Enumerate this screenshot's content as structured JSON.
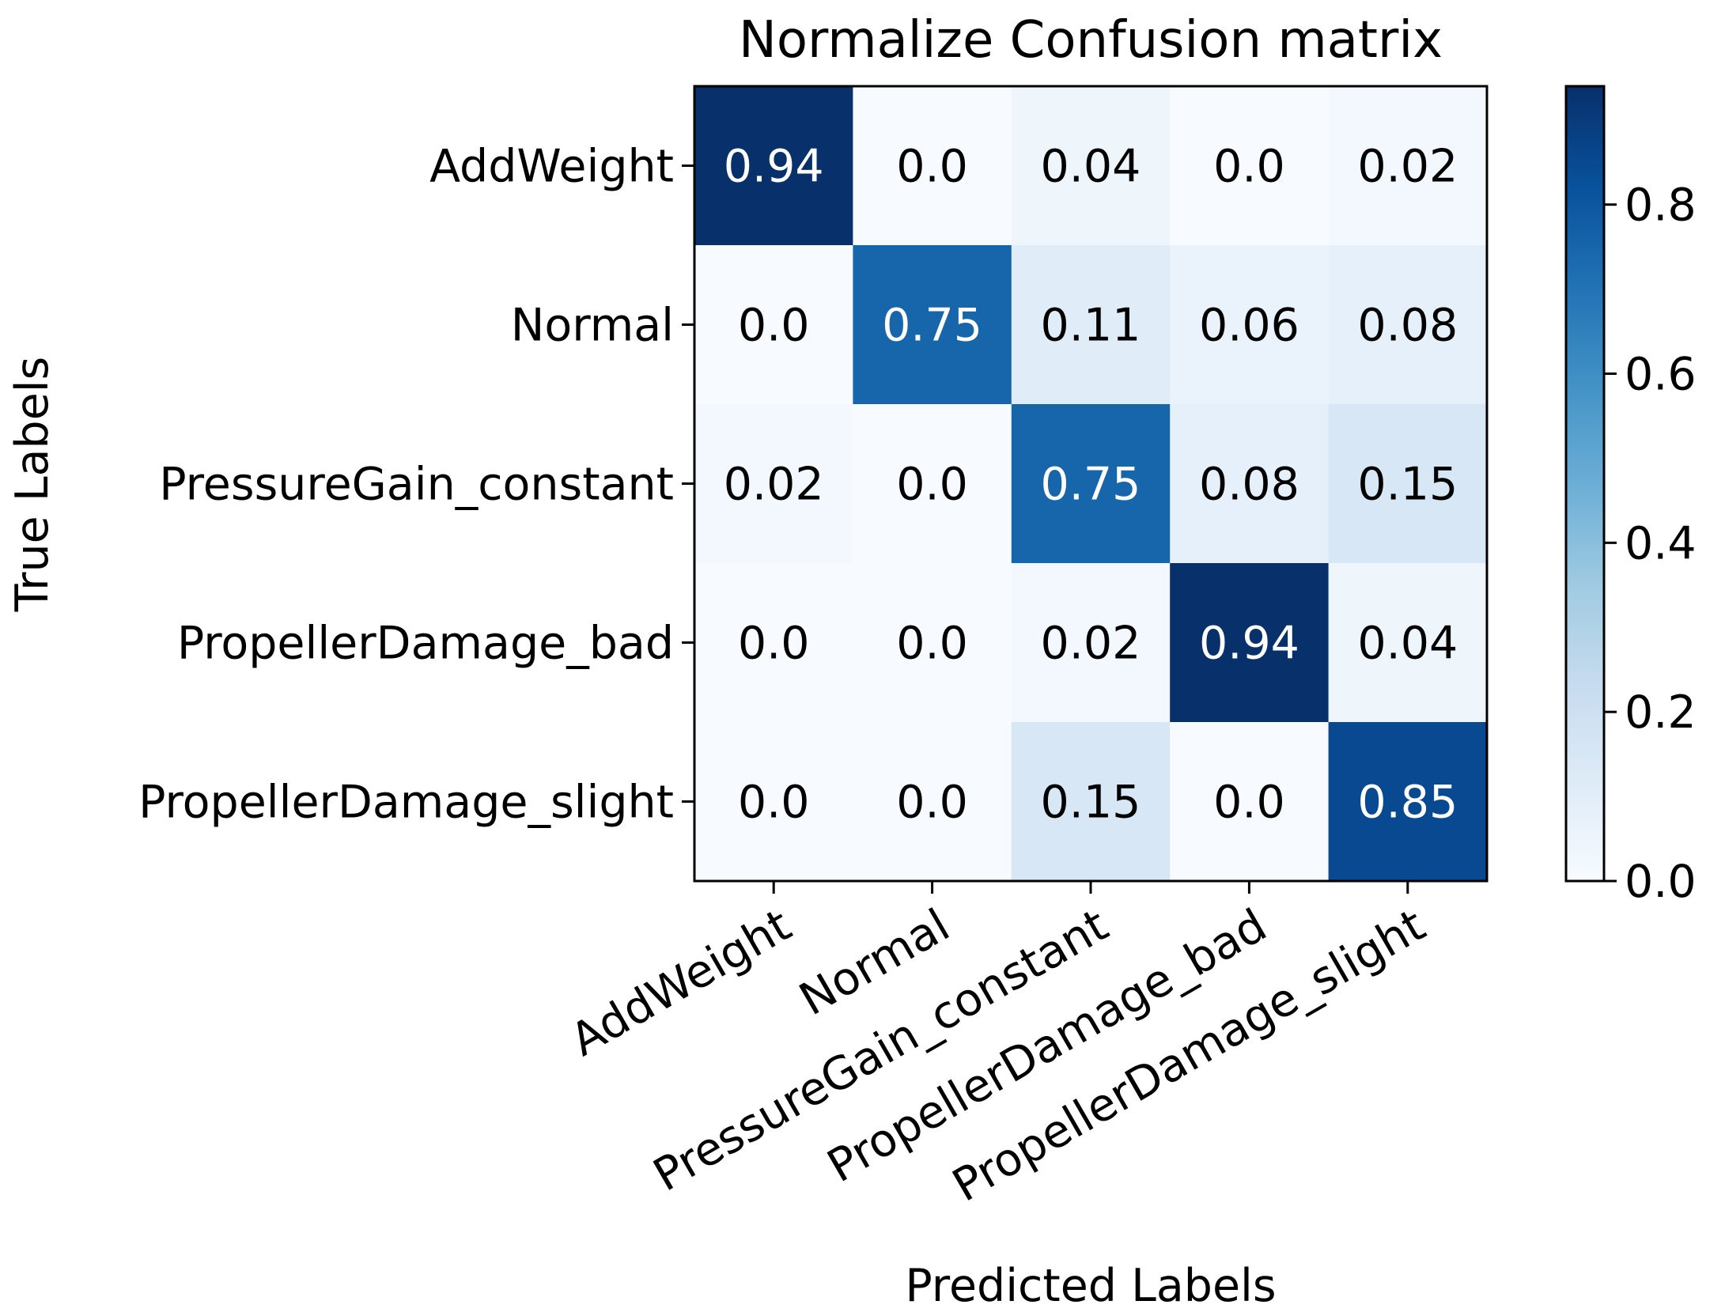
{
  "chart_data": {
    "type": "heatmap",
    "title": "Normalize Confusion matrix",
    "xlabel": "Predicted Labels",
    "ylabel": "True Labels",
    "x_categories": [
      "AddWeight",
      "Normal",
      "PressureGain_constant",
      "PropellerDamage_bad",
      "PropellerDamage_slight"
    ],
    "y_categories": [
      "AddWeight",
      "Normal",
      "PressureGain_constant",
      "PropellerDamage_bad",
      "PropellerDamage_slight"
    ],
    "values": [
      [
        0.94,
        0.0,
        0.04,
        0.0,
        0.02
      ],
      [
        0.0,
        0.75,
        0.11,
        0.06,
        0.08
      ],
      [
        0.02,
        0.0,
        0.75,
        0.08,
        0.15
      ],
      [
        0.0,
        0.0,
        0.02,
        0.94,
        0.04
      ],
      [
        0.0,
        0.0,
        0.15,
        0.0,
        0.85
      ]
    ],
    "colormap": "Blues",
    "colormap_stops": [
      "#f7fbff",
      "#deebf7",
      "#c6dbef",
      "#9ecae1",
      "#6baed6",
      "#4292c6",
      "#2171b5",
      "#08519c",
      "#08306b"
    ],
    "colorbar": {
      "range": [
        0.0,
        0.94
      ],
      "ticks": [
        "0.0",
        "0.2",
        "0.4",
        "0.6",
        "0.8"
      ],
      "tick_values": [
        0.0,
        0.2,
        0.4,
        0.6,
        0.8
      ]
    },
    "x_tick_rotation_deg": 30
  }
}
